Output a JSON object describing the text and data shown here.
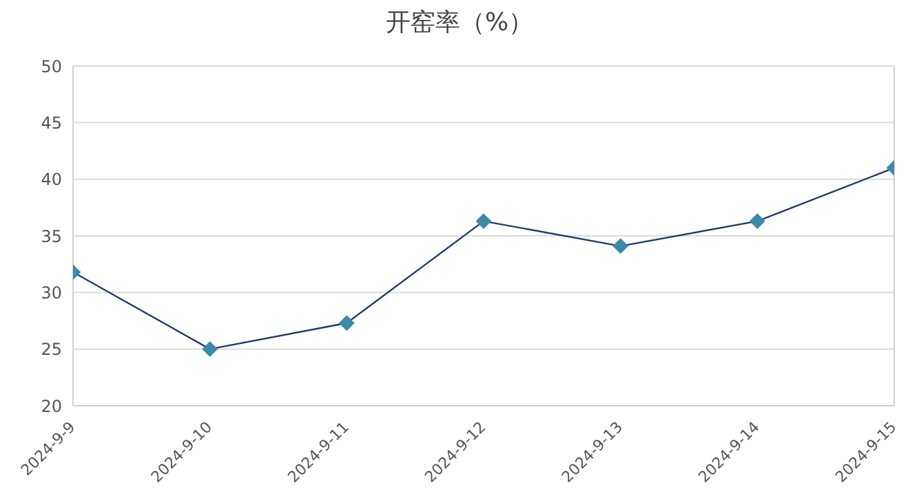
{
  "chart_data": {
    "type": "line",
    "title": "开窑率（%）",
    "categories": [
      "2024-9-9",
      "2024-9-10",
      "2024-9-11",
      "2024-9-12",
      "2024-9-13",
      "2024-9-14",
      "2024-9-15"
    ],
    "series": [
      {
        "color": "#1f3a6e",
        "values": [
          31.8,
          25.0,
          27.3,
          36.3,
          34.1,
          36.3,
          41.0
        ]
      }
    ],
    "ylim": [
      20,
      50
    ],
    "yticks": [
      20,
      25,
      30,
      35,
      40,
      45,
      50
    ],
    "grid": "y",
    "marker": "diamond",
    "line_style": "solid",
    "legend": false
  }
}
